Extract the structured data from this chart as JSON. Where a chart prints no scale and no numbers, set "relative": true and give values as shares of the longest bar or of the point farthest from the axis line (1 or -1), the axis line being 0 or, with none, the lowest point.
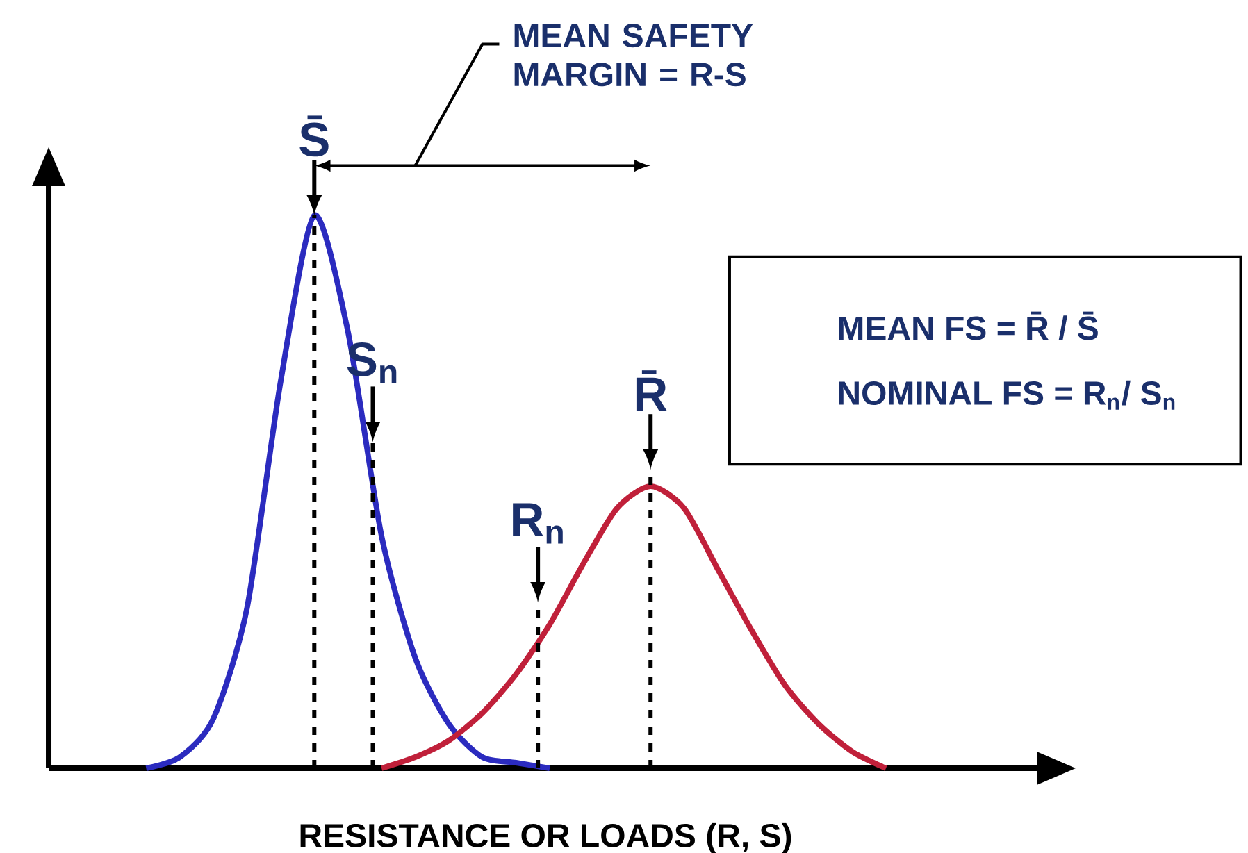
{
  "chart_data": {
    "type": "line",
    "relative": true,
    "tick_labels": false,
    "xlabel": "RESISTANCE OR LOADS (R, S)",
    "categories": [
      null,
      null,
      null,
      null,
      null,
      null,
      null,
      null,
      null,
      null,
      null,
      null,
      null,
      null,
      null,
      null,
      null,
      null,
      null,
      null,
      null,
      null,
      null,
      null
    ],
    "series": [
      {
        "color": "#2b2bbf",
        "values": [
          0,
          0.02,
          0.09,
          0.29,
          0.7,
          1,
          0.79,
          0.42,
          0.2,
          0.08,
          0.02,
          0.01,
          0,
          null,
          null,
          null,
          null,
          null,
          null,
          null,
          null,
          null,
          null,
          null
        ]
      },
      {
        "color": "#c0203a",
        "values": [
          null,
          null,
          null,
          null,
          null,
          null,
          null,
          0,
          0.02,
          0.05,
          0.1,
          0.17,
          0.26,
          0.37,
          0.47,
          0.51,
          0.47,
          0.36,
          0.25,
          0.15,
          0.08,
          0.03,
          0,
          null
        ]
      }
    ],
    "annotations": [
      "S̄",
      "S$_{n}$",
      "R$_{n}$",
      "R̄",
      "MEAN SAFETY MARGIN = R-S",
      "MEAN FS = R̄ / S̄",
      "NOMINAL FS = R$_{n}$/ S$_{n}$"
    ]
  }
}
